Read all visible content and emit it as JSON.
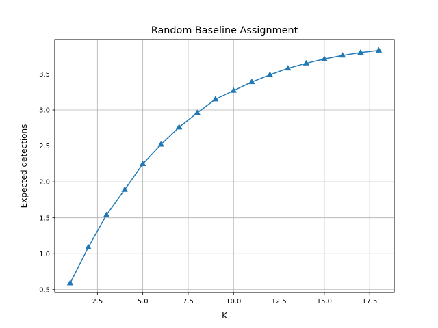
{
  "chart_data": {
    "type": "line",
    "title": "Random Baseline Assignment",
    "xlabel": "K",
    "ylabel": "Expected detections",
    "x": [
      1,
      2,
      3,
      4,
      5,
      6,
      7,
      8,
      9,
      10,
      11,
      12,
      13,
      14,
      15,
      16,
      17,
      18
    ],
    "series": [
      {
        "values": [
          0.59,
          1.09,
          1.54,
          1.89,
          2.25,
          2.52,
          2.76,
          2.96,
          3.15,
          3.27,
          3.39,
          3.49,
          3.58,
          3.65,
          3.71,
          3.76,
          3.8,
          3.83
        ],
        "color": "#1f77b4",
        "marker": "triangle-up"
      }
    ],
    "xlim": [
      0.15,
      18.85
    ],
    "ylim": [
      0.46,
      3.98
    ],
    "xticks": [
      2.5,
      5.0,
      7.5,
      10.0,
      12.5,
      15.0,
      17.5
    ],
    "xtick_labels": [
      "2.5",
      "5.0",
      "7.5",
      "10.0",
      "12.5",
      "15.0",
      "17.5"
    ],
    "yticks": [
      0.5,
      1.0,
      1.5,
      2.0,
      2.5,
      3.0,
      3.5
    ],
    "ytick_labels": [
      "0.5",
      "1.0",
      "1.5",
      "2.0",
      "2.5",
      "3.0",
      "3.5"
    ],
    "grid": true,
    "grid_color": "#b0b0b0"
  }
}
